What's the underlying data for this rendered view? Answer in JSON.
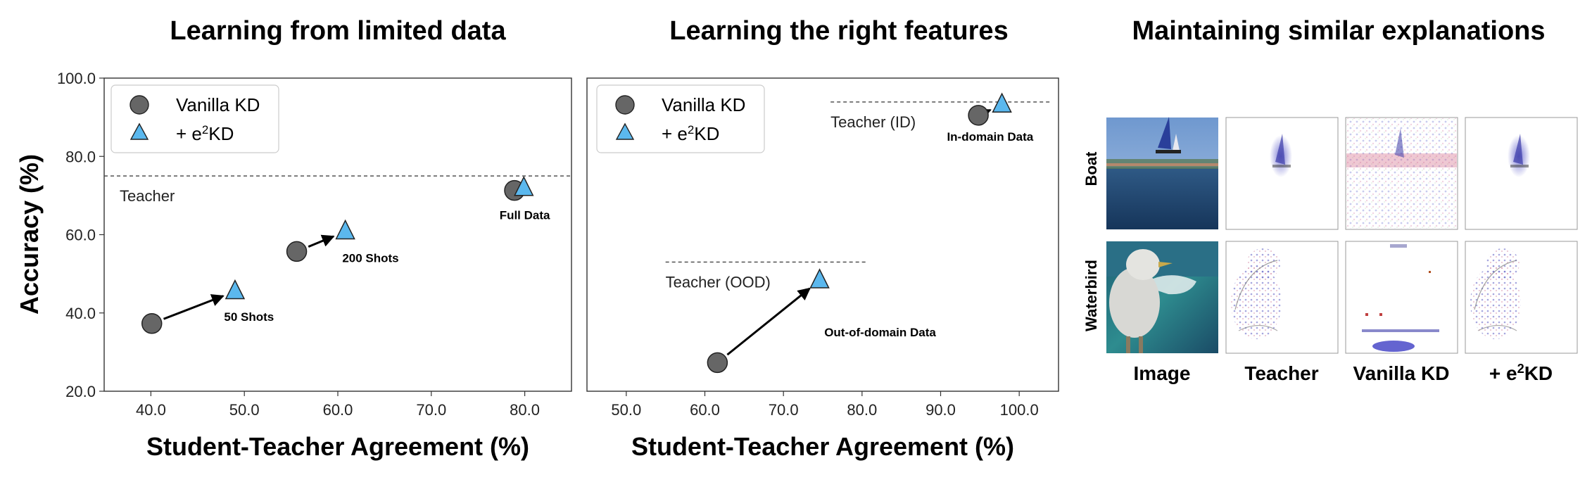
{
  "chart_data": [
    {
      "type": "scatter",
      "title": "Learning from limited data",
      "xlabel": "Student-Teacher Agreement (%)",
      "ylabel": "Accuracy (%)",
      "xlim": [
        35,
        85
      ],
      "ylim": [
        20,
        100
      ],
      "xticks": [
        "40.0",
        "50.0",
        "60.0",
        "70.0",
        "80.0"
      ],
      "yticks": [
        "20.0",
        "40.0",
        "60.0",
        "80.0",
        "100.0"
      ],
      "legend": {
        "placement": "top-left",
        "entries": [
          "Vanilla KD",
          "+ e²KD"
        ]
      },
      "reference_lines": [
        {
          "label": "Teacher",
          "y": 75,
          "x_range": [
            35,
            85
          ]
        }
      ],
      "series": [
        {
          "name": "Vanilla KD",
          "marker": "circle",
          "color": "#666666",
          "x": [
            40.1,
            55.6,
            78.9
          ],
          "y": [
            37.3,
            55.7,
            71.3
          ]
        },
        {
          "name": "+ e²KD",
          "marker": "triangle",
          "color": "#5bb8ee",
          "x": [
            49.0,
            60.8,
            79.9
          ],
          "y": [
            45.5,
            60.8,
            71.9
          ]
        }
      ],
      "annotations": [
        {
          "text": "50 Shots",
          "x": 50.5,
          "y": 38.0
        },
        {
          "text": "200 Shots",
          "x": 63.5,
          "y": 53.0
        },
        {
          "text": "Full Data",
          "x": 80.0,
          "y": 64.0
        }
      ]
    },
    {
      "type": "scatter",
      "title": "Learning the right features",
      "xlabel": "Student-Teacher Agreement (%)",
      "ylabel": "",
      "xlim": [
        45,
        105
      ],
      "ylim": [
        20,
        100
      ],
      "xticks": [
        "50.0",
        "60.0",
        "70.0",
        "80.0",
        "90.0",
        "100.0"
      ],
      "legend": {
        "placement": "top-left",
        "entries": [
          "Vanilla KD",
          "+ e²KD"
        ]
      },
      "reference_lines": [
        {
          "label": "Teacher (ID)",
          "y": 93.9,
          "x_range": [
            76,
            104
          ]
        },
        {
          "label": "Teacher (OOD)",
          "y": 53,
          "x_range": [
            55,
            80.5
          ]
        }
      ],
      "series": [
        {
          "name": "Vanilla KD",
          "marker": "circle",
          "color": "#666666",
          "x": [
            61.6,
            94.8
          ],
          "y": [
            27.3,
            90.5
          ]
        },
        {
          "name": "+ e²KD",
          "marker": "triangle",
          "color": "#5bb8ee",
          "x": [
            74.6,
            97.8
          ],
          "y": [
            48.3,
            93.2
          ]
        }
      ],
      "annotations": [
        {
          "text": "In-domain Data",
          "x": 96.3,
          "y": 84.0
        },
        {
          "text": "Out-of-domain Data",
          "x": 82.3,
          "y": 34.0
        }
      ]
    }
  ],
  "explanations": {
    "title": "Maintaining similar explanations",
    "rows": [
      "Boat",
      "Waterbird"
    ],
    "columns": [
      "Image",
      "Teacher",
      "Vanilla KD",
      "+ e²KD"
    ]
  }
}
